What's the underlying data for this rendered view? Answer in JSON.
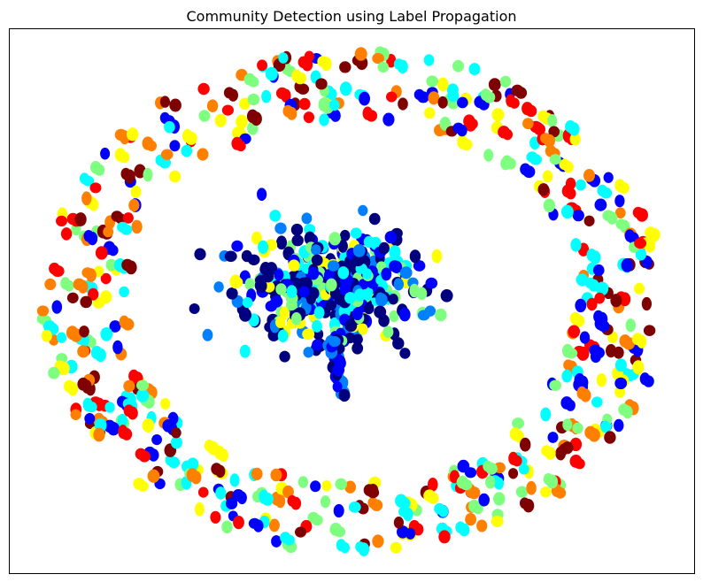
{
  "chart_data": {
    "type": "scatter",
    "title": "Community Detection using Label Propagation",
    "xlabel": "",
    "ylabel": "",
    "axes_visible": false,
    "grid": false,
    "legend": "none",
    "xlim": [
      -1.1,
      1.1
    ],
    "ylim": [
      -1.1,
      1.1
    ],
    "colormap": "jet",
    "colormap_stops": [
      "#00007f",
      "#0000ff",
      "#007fff",
      "#00ffff",
      "#7fff7f",
      "#ffff00",
      "#ff7f00",
      "#ff0000",
      "#7f0000"
    ],
    "series": [
      {
        "group": "central-cluster",
        "center": [
          -0.08,
          0.05
        ],
        "spread": [
          0.3,
          0.24
        ],
        "count": 420,
        "dominant_colors": [
          "#00007f",
          "#0000ff",
          "#007fff",
          "#00ffff",
          "#7fff7f",
          "#ffff00"
        ]
      },
      {
        "group": "outer-ring",
        "center": [
          0.0,
          0.0
        ],
        "radius_range": [
          0.72,
          1.0
        ],
        "count": 520,
        "dominant_colors": [
          "#ff0000",
          "#ff7f00",
          "#7f0000",
          "#00ffff",
          "#7fff7f",
          "#ffff00",
          "#0000ff"
        ]
      }
    ],
    "edges": "few curved gray self-loops near the top of the central cluster"
  }
}
